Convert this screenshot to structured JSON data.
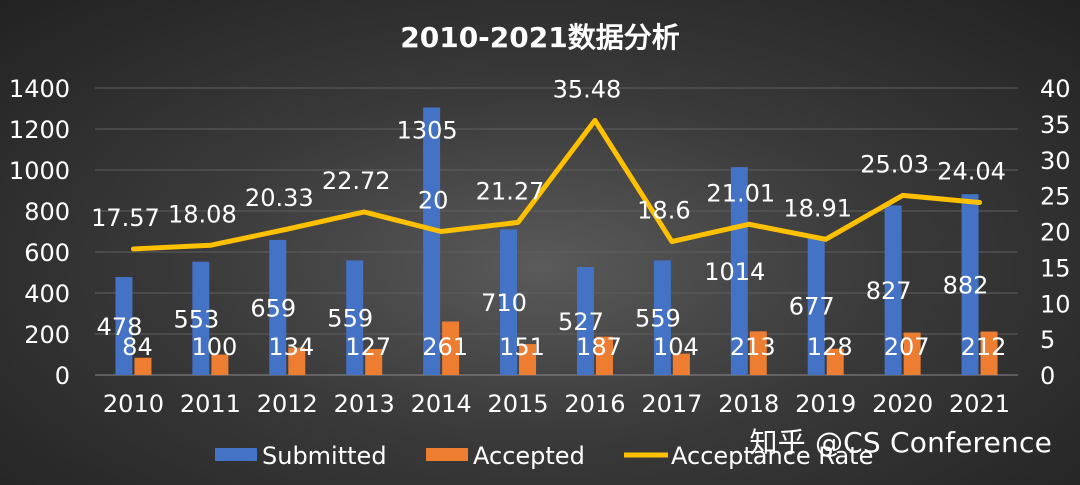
{
  "chart_data": {
    "type": "bar",
    "title": "2010-2021数据分析",
    "xlabel": "",
    "ylabel": "",
    "categories": [
      "2010",
      "2011",
      "2012",
      "2013",
      "2014",
      "2015",
      "2016",
      "2017",
      "2018",
      "2019",
      "2020",
      "2021"
    ],
    "series": [
      {
        "name": "Submitted",
        "type": "bar",
        "axis": "left",
        "color": "#4472C4",
        "values": [
          478,
          553,
          659,
          559,
          1305,
          710,
          527,
          559,
          1014,
          677,
          827,
          882
        ]
      },
      {
        "name": "Accepted",
        "type": "bar",
        "axis": "left",
        "color": "#ED7D31",
        "values": [
          84,
          100,
          134,
          127,
          261,
          151,
          187,
          104,
          213,
          128,
          207,
          212
        ]
      },
      {
        "name": "Acceptance Rate",
        "type": "line",
        "axis": "right",
        "color": "#FFC000",
        "values": [
          17.57,
          18.08,
          20.33,
          22.72,
          20,
          21.27,
          35.48,
          18.6,
          21.01,
          18.91,
          25.03,
          24.04
        ]
      }
    ],
    "y_left": {
      "ylim": [
        0,
        1400
      ],
      "ticks": [
        "0",
        "200",
        "400",
        "600",
        "800",
        "1000",
        "1200",
        "1400"
      ]
    },
    "y_right": {
      "ylim": [
        0,
        40
      ],
      "ticks": [
        "0",
        "5",
        "10",
        "15",
        "20",
        "25",
        "30",
        "35",
        "40"
      ]
    },
    "grid": true,
    "legend_position": "bottom"
  },
  "watermark": "知乎 @CS Conference"
}
